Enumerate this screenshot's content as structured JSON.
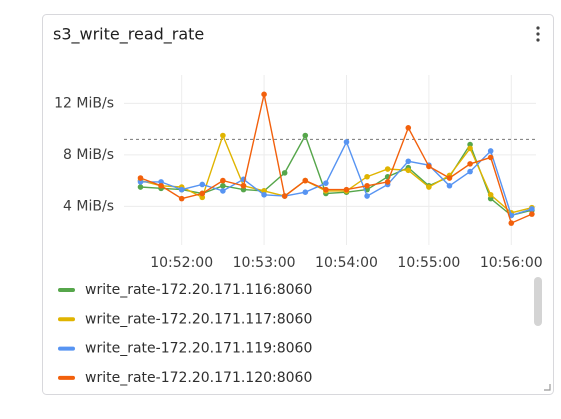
{
  "chart_data": {
    "type": "line",
    "title": "s3_write_read_rate",
    "x": [
      "10:51:30",
      "10:51:45",
      "10:52:00",
      "10:52:15",
      "10:52:30",
      "10:52:45",
      "10:53:00",
      "10:53:15",
      "10:53:30",
      "10:53:45",
      "10:54:00",
      "10:54:15",
      "10:54:30",
      "10:54:45",
      "10:55:00",
      "10:55:15",
      "10:55:30",
      "10:55:45",
      "10:56:00",
      "10:56:15"
    ],
    "xlim": [
      "10:51:18",
      "10:56:18"
    ],
    "xticks": [
      "10:52:00",
      "10:53:00",
      "10:54:00",
      "10:55:00",
      "10:56:00"
    ],
    "ylim": [
      1,
      14.2
    ],
    "yticks": [
      {
        "value": 4,
        "label": "4 MiB/s"
      },
      {
        "value": 8,
        "label": "8 MiB/s"
      },
      {
        "value": 12,
        "label": "12 MiB/s"
      }
    ],
    "grid": true,
    "threshold": 9.2,
    "series": [
      {
        "name": "write_rate-172.20.171.116:8060",
        "color": "#56a64b",
        "values": [
          5.5,
          5.4,
          5.3,
          5.0,
          5.6,
          5.3,
          5.2,
          6.6,
          9.5,
          5.0,
          5.1,
          5.3,
          6.3,
          7.0,
          5.6,
          6.3,
          8.8,
          4.6,
          3.3,
          3.7
        ]
      },
      {
        "name": "write_rate-172.20.171.117:8060",
        "color": "#e0b400",
        "values": [
          6.0,
          5.6,
          5.5,
          4.7,
          9.5,
          5.6,
          5.2,
          4.8,
          6.0,
          5.2,
          5.2,
          6.3,
          6.9,
          6.8,
          5.5,
          6.4,
          8.5,
          4.9,
          3.5,
          3.9
        ]
      },
      {
        "name": "write_rate-172.20.171.119:8060",
        "color": "#5794f2",
        "values": [
          5.9,
          5.9,
          5.3,
          5.7,
          5.2,
          6.1,
          4.9,
          4.8,
          5.1,
          5.8,
          9.0,
          4.8,
          5.7,
          7.5,
          7.2,
          5.6,
          6.7,
          8.3,
          3.3,
          3.8
        ]
      },
      {
        "name": "write_rate-172.20.171.120:8060",
        "color": "#f2600c",
        "values": [
          6.2,
          5.6,
          4.6,
          5.0,
          6.0,
          5.6,
          12.7,
          4.8,
          6.0,
          5.3,
          5.3,
          5.6,
          5.9,
          10.1,
          7.1,
          6.2,
          7.3,
          7.8,
          2.7,
          3.4
        ]
      }
    ]
  }
}
